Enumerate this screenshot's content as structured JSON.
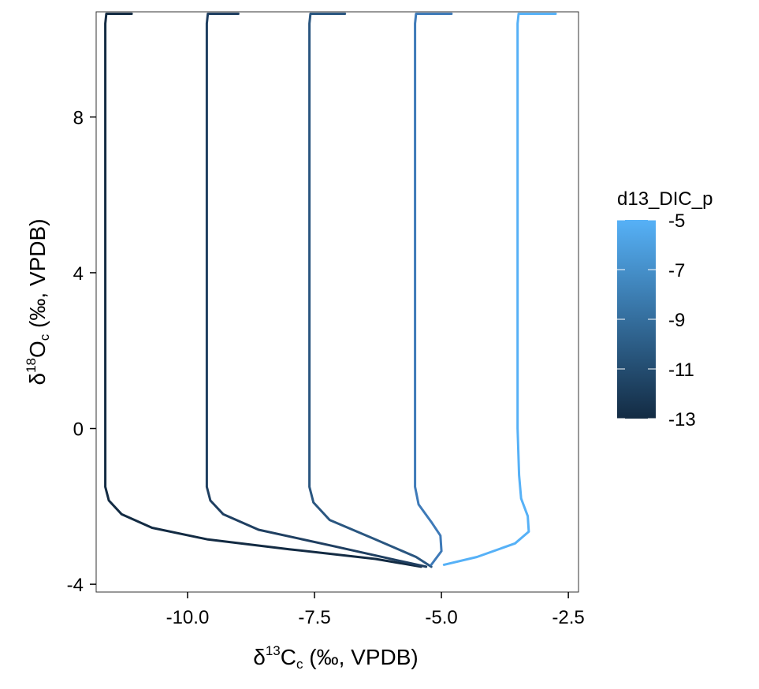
{
  "chart_data": {
    "type": "line",
    "xlabel": {
      "delta": "δ",
      "sup": "13",
      "main": "C",
      "sub": "c",
      "rest": " (‰, VPDB)"
    },
    "ylabel": {
      "delta": "δ",
      "sup": "18",
      "main": "O",
      "sub": "c",
      "rest": " (‰, VPDB)"
    },
    "xlim": [
      -11.8,
      -2.3
    ],
    "ylim": [
      -4.2,
      10.7
    ],
    "x_ticks": [
      {
        "value": -10.0,
        "label": "-10.0"
      },
      {
        "value": -7.5,
        "label": "-7.5"
      },
      {
        "value": -5.0,
        "label": "-5.0"
      },
      {
        "value": -2.5,
        "label": "-2.5"
      }
    ],
    "y_ticks": [
      {
        "value": -4,
        "label": "-4"
      },
      {
        "value": 0,
        "label": "0"
      },
      {
        "value": 4,
        "label": "4"
      },
      {
        "value": 8,
        "label": "8"
      }
    ],
    "grid": false,
    "legend": {
      "title": "d13_DIC_p",
      "position": "right",
      "type": "colorbar",
      "min": -13,
      "max": -5,
      "ticks": [
        {
          "value": -5,
          "label": "-5"
        },
        {
          "value": -7,
          "label": "-7"
        },
        {
          "value": -9,
          "label": "-9"
        },
        {
          "value": -11,
          "label": "-11"
        },
        {
          "value": -13,
          "label": "-13"
        }
      ],
      "color_low": "#132B43",
      "color_high": "#56B1F7"
    },
    "series": [
      {
        "d13_DIC_p": -13,
        "color": "#132B43",
        "points": [
          [
            -11.1,
            10.65
          ],
          [
            -11.6,
            10.65
          ],
          [
            -11.62,
            10.4
          ],
          [
            -11.62,
            6
          ],
          [
            -11.62,
            0
          ],
          [
            -11.62,
            -1.5
          ],
          [
            -11.55,
            -1.85
          ],
          [
            -11.3,
            -2.2
          ],
          [
            -10.7,
            -2.55
          ],
          [
            -9.6,
            -2.85
          ],
          [
            -8.0,
            -3.1
          ],
          [
            -6.3,
            -3.35
          ],
          [
            -5.4,
            -3.55
          ]
        ]
      },
      {
        "d13_DIC_p": -11,
        "color": "#1F3F61",
        "points": [
          [
            -9.0,
            10.65
          ],
          [
            -9.6,
            10.65
          ],
          [
            -9.62,
            10.4
          ],
          [
            -9.62,
            6
          ],
          [
            -9.62,
            0
          ],
          [
            -9.62,
            -1.5
          ],
          [
            -9.55,
            -1.85
          ],
          [
            -9.3,
            -2.2
          ],
          [
            -8.6,
            -2.6
          ],
          [
            -7.2,
            -3.0
          ],
          [
            -5.3,
            -3.55
          ]
        ]
      },
      {
        "d13_DIC_p": -9,
        "color": "#2A5680",
        "points": [
          [
            -6.9,
            10.65
          ],
          [
            -7.58,
            10.65
          ],
          [
            -7.6,
            10.4
          ],
          [
            -7.6,
            6
          ],
          [
            -7.6,
            0
          ],
          [
            -7.6,
            -1.5
          ],
          [
            -7.52,
            -1.9
          ],
          [
            -7.2,
            -2.35
          ],
          [
            -6.3,
            -2.85
          ],
          [
            -5.5,
            -3.3
          ],
          [
            -5.2,
            -3.55
          ]
        ]
      },
      {
        "d13_DIC_p": -7,
        "color": "#3E7AB8",
        "points": [
          [
            -4.8,
            10.65
          ],
          [
            -5.5,
            10.65
          ],
          [
            -5.52,
            10.4
          ],
          [
            -5.52,
            6
          ],
          [
            -5.52,
            0
          ],
          [
            -5.52,
            -1.5
          ],
          [
            -5.45,
            -1.95
          ],
          [
            -5.2,
            -2.4
          ],
          [
            -5.02,
            -2.75
          ],
          [
            -5.0,
            -3.15
          ],
          [
            -5.2,
            -3.5
          ]
        ]
      },
      {
        "d13_DIC_p": -5,
        "color": "#56B1F7",
        "points": [
          [
            -2.75,
            10.65
          ],
          [
            -3.48,
            10.65
          ],
          [
            -3.5,
            10.4
          ],
          [
            -3.5,
            6
          ],
          [
            -3.5,
            0
          ],
          [
            -3.47,
            -1.2
          ],
          [
            -3.43,
            -1.8
          ],
          [
            -3.3,
            -2.25
          ],
          [
            -3.28,
            -2.65
          ],
          [
            -3.55,
            -2.95
          ],
          [
            -4.3,
            -3.3
          ],
          [
            -4.95,
            -3.5
          ]
        ]
      }
    ]
  }
}
